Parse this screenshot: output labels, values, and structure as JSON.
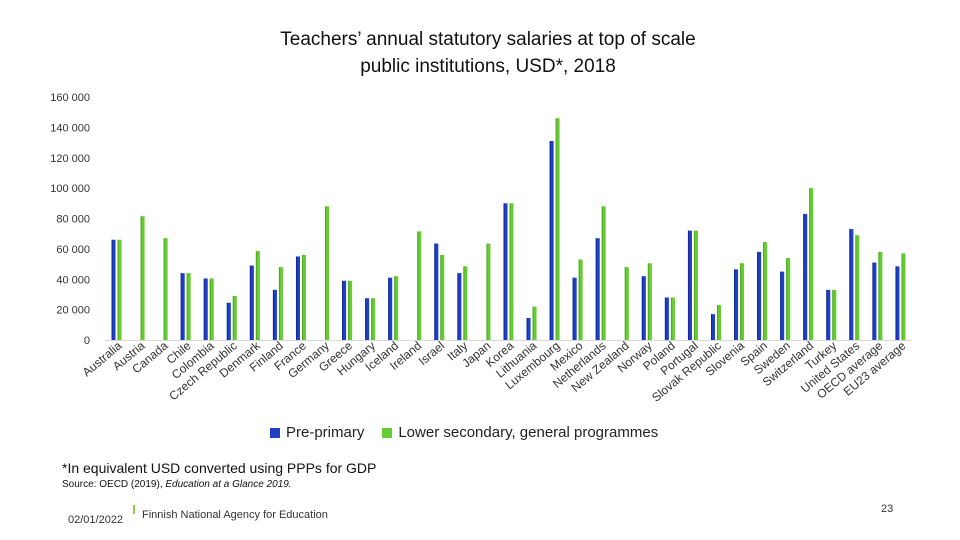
{
  "chart_data": {
    "type": "bar",
    "title": "Teachers’ annual statutory salaries at top of scale public institutions, USD*, 2018",
    "title_lines": [
      "Teachers’ annual statutory salaries at top of scale",
      "public institutions, USD*, 2018"
    ],
    "xlabel": "",
    "ylabel": "",
    "ylim": [
      0,
      160000
    ],
    "y_ticks": [
      0,
      20000,
      40000,
      60000,
      80000,
      100000,
      120000,
      140000,
      160000
    ],
    "y_tick_labels": [
      "0",
      "20 000",
      "40 000",
      "60 000",
      "80 000",
      "100 000",
      "120 000",
      "140 000",
      "160 000"
    ],
    "grid": false,
    "legend_position": "bottom",
    "categories": [
      "Australia",
      "Austria",
      "Canada",
      "Chile",
      "Colombia",
      "Czech Republic",
      "Denmark",
      "Finland",
      "France",
      "Germany",
      "Greece",
      "Hungary",
      "Iceland",
      "Ireland",
      "Israel",
      "Italy",
      "Japan",
      "Korea",
      "Lithuania",
      "Luxembourg",
      "Mexico",
      "Netherlands",
      "New Zealand",
      "Norway",
      "Poland",
      "Portugal",
      "Slovak Republic",
      "Slovenia",
      "Spain",
      "Sweden",
      "Switzerland",
      "Turkey",
      "United States",
      "OECD average",
      "EU23 average"
    ],
    "series": [
      {
        "name": "Pre-primary",
        "color": "#1f3fc4",
        "values": [
          66000,
          null,
          null,
          44000,
          40500,
          24500,
          49000,
          33000,
          55000,
          null,
          39000,
          27500,
          41000,
          null,
          63500,
          44000,
          null,
          90000,
          14500,
          131000,
          41000,
          67000,
          null,
          42000,
          28000,
          72000,
          17000,
          46500,
          58000,
          45000,
          83000,
          33000,
          73000,
          51000,
          48500
        ]
      },
      {
        "name": "Lower secondary, general programmes",
        "color": "#66cc33",
        "values": [
          66000,
          81500,
          67000,
          44000,
          40500,
          29000,
          58500,
          48000,
          56000,
          88000,
          39000,
          27500,
          42000,
          71500,
          56000,
          48500,
          63500,
          90000,
          22000,
          146000,
          53000,
          88000,
          48000,
          50500,
          28000,
          72000,
          23000,
          50500,
          64500,
          54000,
          100000,
          33000,
          69000,
          58000,
          57000
        ]
      }
    ]
  },
  "footnote": "*In equivalent USD converted using PPPs for GDP",
  "source_prefix": "Source: OECD (2019), ",
  "source_title": "Education at a Glance 2019.",
  "footer": {
    "date": "02/01/2022",
    "agency": "Finnish National Agency for Education",
    "page": "23"
  }
}
